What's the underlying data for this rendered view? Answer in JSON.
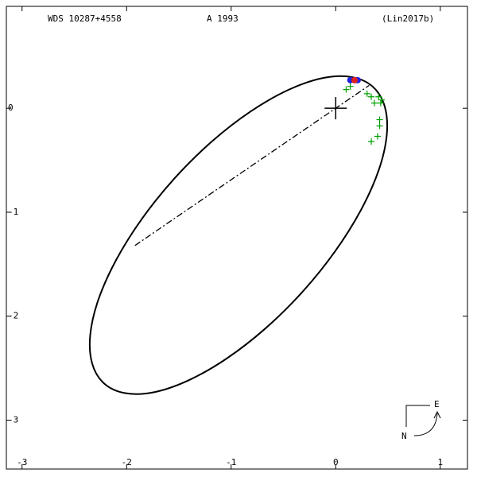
{
  "chart_data": {
    "type": "orbit",
    "title": "WDS 10287+4558",
    "subtitle": "A  1993",
    "reference": "(Lin2017b)",
    "xlim": [
      -3.15,
      1.26
    ],
    "ylim": [
      -3.47,
      0.98
    ],
    "xticks": [
      -3,
      -2,
      -1,
      0,
      1
    ],
    "yticks": [
      -3,
      -2,
      -1,
      0
    ],
    "orbit": {
      "color": "#000000",
      "x": [
        0.355,
        0.153,
        -0.122,
        -0.452,
        -0.814,
        -1.185,
        -1.539,
        -1.851,
        -2.1,
        -2.27,
        -2.348,
        -2.329,
        -2.215,
        -2.013,
        -1.738,
        -1.408,
        -1.046,
        -0.675,
        -0.321,
        -0.009,
        0.24,
        0.41,
        0.488,
        0.469
      ],
      "y": [
        0.207,
        0.3,
        0.291,
        0.177,
        -0.031,
        -0.32,
        -0.671,
        -1.06,
        -1.459,
        -1.841,
        -2.181,
        -2.456,
        -2.647,
        -2.74,
        -2.731,
        -2.617,
        -2.409,
        -2.12,
        -1.769,
        -1.38,
        -0.981,
        -0.599,
        -0.259,
        0.016
      ]
    },
    "node_line": {
      "x": [
        -1.92,
        0.32
      ],
      "y": [
        -1.32,
        0.22
      ]
    },
    "primary": {
      "x": 0,
      "y": 0
    },
    "series": [
      {
        "color": "#00a000",
        "marker": "plus",
        "x": [
          0.1,
          0.14,
          0.3,
          0.34,
          0.37,
          0.41,
          0.44,
          0.43,
          0.42,
          0.42,
          0.4,
          0.34
        ],
        "y": [
          0.18,
          0.21,
          0.14,
          0.11,
          0.05,
          0.11,
          0.08,
          0.05,
          -0.11,
          -0.17,
          -0.27,
          -0.32
        ]
      },
      {
        "color": "#2020e0",
        "marker": "dot",
        "x": [
          0.14,
          0.18,
          0.21
        ],
        "y": [
          0.27,
          0.27,
          0.27
        ]
      },
      {
        "color": "#e02020",
        "marker": "dot",
        "x": [
          0.18
        ],
        "y": [
          0.27
        ]
      }
    ],
    "compass": {
      "east": "E",
      "north": "N"
    }
  }
}
